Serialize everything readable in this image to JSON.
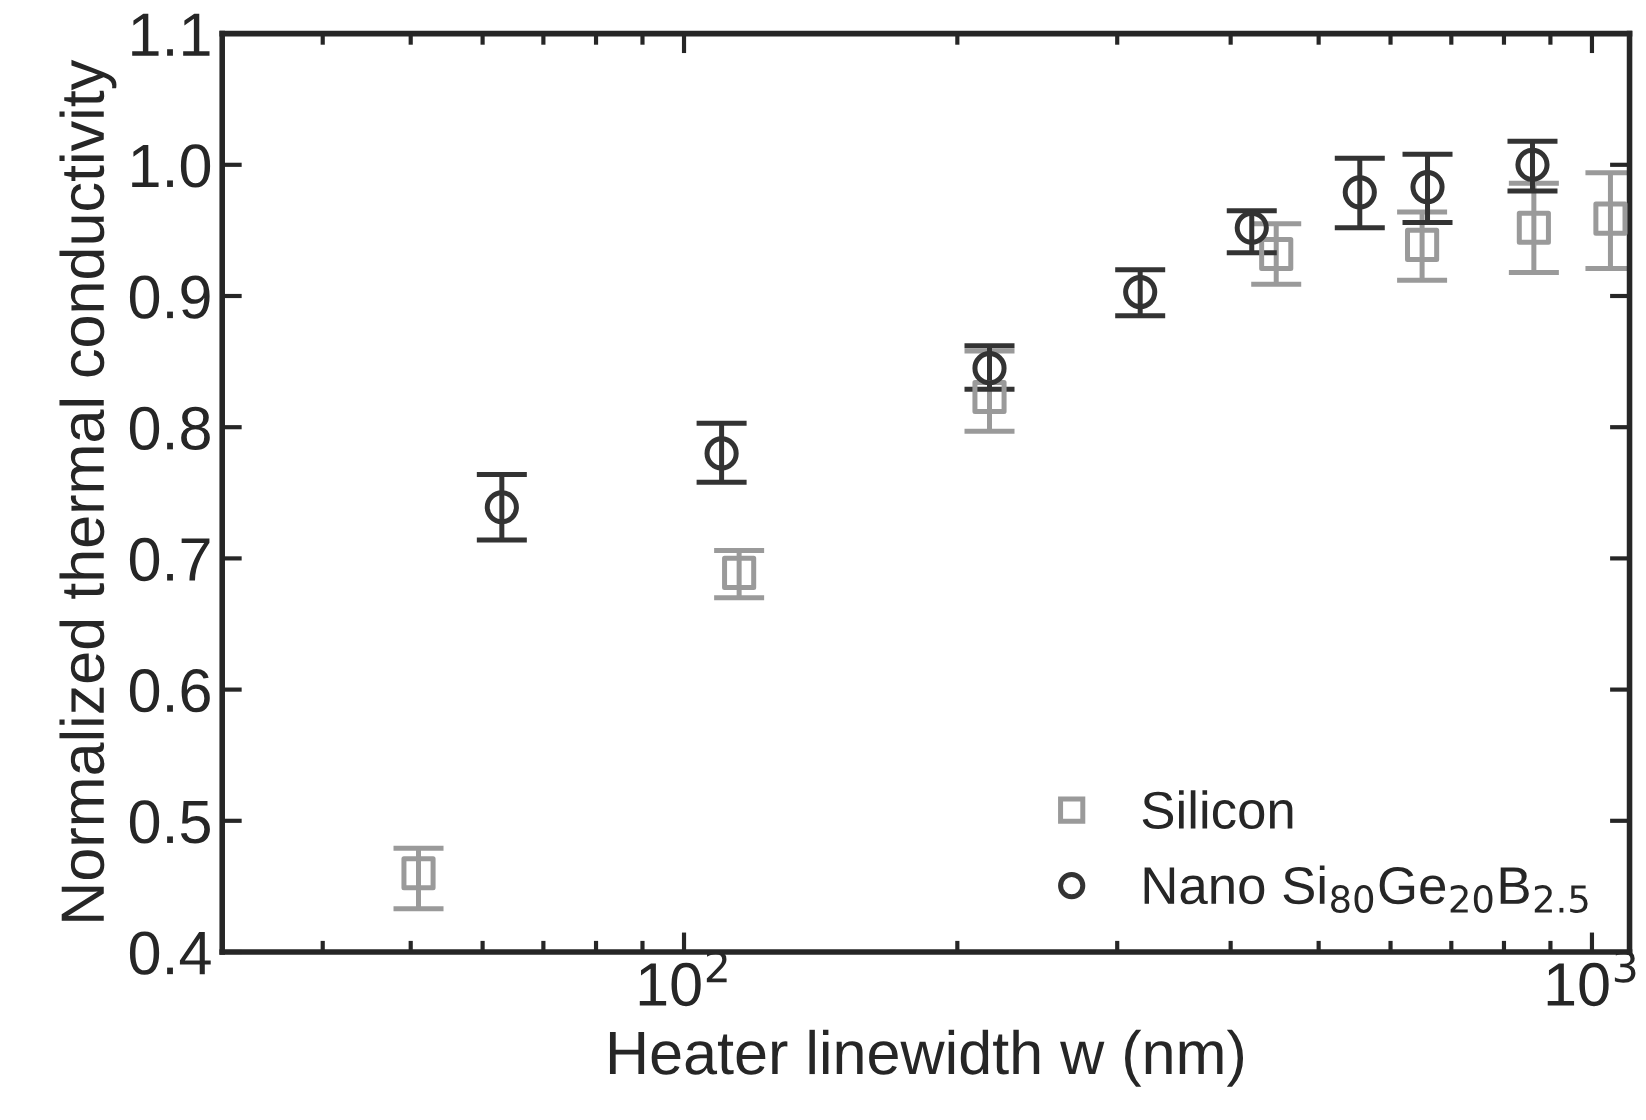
{
  "chart_data": {
    "type": "scatter",
    "xlabel": "Heater linewidth w (nm)",
    "ylabel": "Normalized thermal conductivity",
    "log": "x",
    "xlim": [
      31,
      1100
    ],
    "ylim": [
      0.4,
      1.1
    ],
    "xticks": [
      {
        "value": 100,
        "label": "10$^{2}$"
      },
      {
        "value": 1000,
        "label": "10$^{3}$"
      }
    ],
    "yticks": [
      0.4,
      0.5,
      0.6,
      0.7,
      0.8,
      0.9,
      {
        "value": 1.0,
        "label": "1.0"
      },
      1.1
    ],
    "grid": false,
    "legend": "bottom right",
    "series": [
      {
        "name": "Silicon",
        "color": "#9a9a9a",
        "marker": "square",
        "x": [
          51,
          115,
          217,
          449,
          650,
          863,
          1048
        ],
        "values": [
          0.46,
          0.689,
          0.823,
          0.932,
          0.939,
          0.952,
          0.959
        ],
        "errors": [
          [
            0.433,
            0.479
          ],
          [
            0.67,
            0.706
          ],
          [
            0.797,
            0.858
          ],
          [
            0.909,
            0.955
          ],
          [
            0.912,
            0.964
          ],
          [
            0.918,
            0.986
          ],
          [
            0.921,
            0.994
          ]
        ]
      },
      {
        "name": "Nano Si$_{80}$Ge$_{20}$B$_{2.5}$",
        "color": "#333333",
        "marker": "circle",
        "x": [
          63,
          110,
          217,
          318,
          422,
          555,
          659,
          860
        ],
        "values": [
          0.739,
          0.78,
          0.845,
          0.903,
          0.952,
          0.979,
          0.983,
          1.0
        ],
        "errors": [
          [
            0.714,
            0.764
          ],
          [
            0.758,
            0.803
          ],
          [
            0.829,
            0.862
          ],
          [
            0.885,
            0.92
          ],
          [
            0.933,
            0.965
          ],
          [
            0.952,
            1.005
          ],
          [
            0.956,
            1.008
          ],
          [
            0.98,
            1.018
          ]
        ]
      }
    ]
  }
}
